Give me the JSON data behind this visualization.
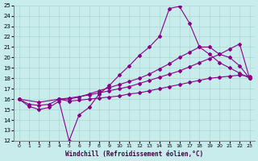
{
  "xlabel": "Windchill (Refroidissement éolien,°C)",
  "xlim": [
    -0.5,
    23.5
  ],
  "ylim": [
    12,
    25
  ],
  "xticks": [
    0,
    1,
    2,
    3,
    4,
    5,
    6,
    7,
    8,
    9,
    10,
    11,
    12,
    13,
    14,
    15,
    16,
    17,
    18,
    19,
    20,
    21,
    22,
    23
  ],
  "yticks": [
    12,
    13,
    14,
    15,
    16,
    17,
    18,
    19,
    20,
    21,
    22,
    23,
    24,
    25
  ],
  "background_color": "#c8ecec",
  "line_color": "#880088",
  "lines": [
    {
      "x": [
        0,
        1,
        2,
        3,
        4,
        5,
        6,
        7,
        8,
        9,
        10,
        11,
        12,
        13,
        14,
        15,
        16,
        17,
        18,
        19,
        20,
        21,
        22,
        23
      ],
      "y": [
        16,
        15.3,
        15.0,
        15.2,
        15.8,
        12.0,
        14.5,
        15.2,
        16.5,
        17.3,
        18.3,
        19.2,
        20.2,
        21.0,
        22.0,
        24.7,
        24.9,
        23.3,
        21.0,
        20.3,
        19.5,
        19.0,
        18.5,
        18.0
      ]
    },
    {
      "x": [
        4,
        5,
        6,
        7,
        8,
        9,
        10,
        11,
        12,
        13,
        14,
        15,
        16,
        17,
        18,
        19,
        20,
        21,
        22,
        23
      ],
      "y": [
        16.0,
        16.0,
        16.2,
        16.5,
        16.8,
        17.1,
        17.4,
        17.7,
        18.0,
        18.4,
        18.9,
        19.4,
        20.0,
        20.5,
        21.0,
        21.0,
        20.3,
        20.0,
        19.2,
        18.0
      ]
    },
    {
      "x": [
        0,
        2,
        4,
        5,
        7,
        8,
        9,
        10,
        11,
        12,
        13,
        14,
        15,
        16,
        17,
        18,
        19,
        20,
        21,
        22,
        23
      ],
      "y": [
        16.0,
        15.7,
        16.0,
        16.1,
        16.4,
        16.6,
        16.8,
        17.0,
        17.2,
        17.5,
        17.8,
        18.1,
        18.4,
        18.7,
        19.1,
        19.5,
        19.9,
        20.3,
        20.8,
        21.3,
        18.0
      ]
    },
    {
      "x": [
        0,
        1,
        2,
        3,
        4,
        5,
        6,
        7,
        8,
        9,
        10,
        11,
        12,
        13,
        14,
        15,
        16,
        17,
        18,
        19,
        20,
        21,
        22,
        23
      ],
      "y": [
        16.0,
        15.5,
        15.4,
        15.5,
        16.0,
        15.8,
        15.9,
        16.0,
        16.1,
        16.2,
        16.3,
        16.5,
        16.6,
        16.8,
        17.0,
        17.2,
        17.4,
        17.6,
        17.8,
        18.0,
        18.1,
        18.2,
        18.3,
        18.2
      ]
    }
  ]
}
